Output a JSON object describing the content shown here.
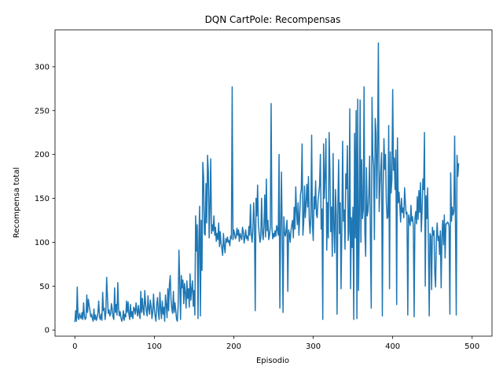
{
  "chart_data": {
    "type": "line",
    "title": "DQN CartPole: Recompensas",
    "xlabel": "Episodio",
    "ylabel": "Recompensa total",
    "xlim": [
      -25,
      525
    ],
    "ylim": [
      -7,
      342
    ],
    "xticks": [
      0,
      100,
      200,
      300,
      400,
      500
    ],
    "yticks": [
      0,
      50,
      100,
      150,
      200,
      250,
      300
    ],
    "grid": false,
    "series_color": "#1f77b4",
    "series": [
      {
        "values": [
          9,
          22,
          10,
          49,
          14,
          12,
          19,
          15,
          13,
          20,
          12,
          31,
          16,
          12,
          14,
          40,
          20,
          35,
          28,
          22,
          15,
          18,
          13,
          10,
          24,
          12,
          17,
          11,
          14,
          20,
          33,
          15,
          12,
          18,
          11,
          43,
          22,
          25,
          12,
          20,
          60,
          38,
          19,
          23,
          16,
          18,
          30,
          24,
          15,
          12,
          48,
          20,
          29,
          17,
          54,
          25,
          16,
          21,
          14,
          10,
          13,
          22,
          11,
          18,
          15,
          33,
          20,
          32,
          18,
          12,
          29,
          15,
          21,
          13,
          26,
          24,
          18,
          31,
          22,
          16,
          28,
          19,
          13,
          44,
          20,
          36,
          23,
          17,
          45,
          30,
          21,
          16,
          39,
          24,
          18,
          34,
          27,
          13,
          20,
          41,
          24,
          16,
          10,
          29,
          37,
          20,
          12,
          43,
          25,
          13,
          33,
          18,
          26,
          10,
          40,
          29,
          14,
          47,
          22,
          52,
          62,
          35,
          24,
          19,
          44,
          20,
          31,
          22,
          12,
          10,
          28,
          91,
          55,
          12,
          62,
          48,
          57,
          30,
          53,
          43,
          25,
          56,
          36,
          47,
          26,
          64,
          34,
          47,
          56,
          27,
          45,
          17,
          130,
          90,
          120,
          13,
          100,
          141,
          16,
          125,
          68,
          191,
          175,
          110,
          108,
          167,
          122,
          199,
          180,
          105,
          140,
          195,
          110,
          120,
          113,
          130,
          108,
          117,
          101,
          110,
          103,
          122,
          95,
          112,
          98,
          93,
          85,
          110,
          96,
          88,
          104,
          100,
          106,
          100,
          102,
          96,
          107,
          104,
          277,
          103,
          114,
          110,
          104,
          106,
          116,
          108,
          114,
          101,
          110,
          106,
          103,
          117,
          112,
          99,
          106,
          114,
          104,
          107,
          102,
          118,
          108,
          143,
          110,
          100,
          113,
          145,
          120,
          22,
          150,
          130,
          165,
          120,
          110,
          100,
          105,
          150,
          112,
          103,
          118,
          154,
          106,
          172,
          113,
          125,
          103,
          108,
          118,
          258,
          117,
          104,
          110,
          106,
          113,
          107,
          119,
          115,
          108,
          200,
          25,
          114,
          180,
          105,
          20,
          129,
          110,
          107,
          115,
          125,
          44,
          114,
          110,
          100,
          113,
          120,
          125,
          105,
          140,
          115,
          163,
          135,
          120,
          145,
          108,
          130,
          155,
          160,
          212,
          108,
          122,
          164,
          128,
          145,
          166,
          140,
          175,
          125,
          110,
          129,
          222,
          120,
          102,
          152,
          138,
          170,
          132,
          128,
          147,
          155,
          165,
          200,
          115,
          138,
          12,
          212,
          150,
          177,
          218,
          91,
          145,
          105,
          225,
          182,
          112,
          140,
          84,
          201,
          116,
          88,
          160,
          132,
          18,
          140,
          194,
          110,
          145,
          47,
          113,
          215,
          124,
          137,
          92,
          178,
          161,
          210,
          102,
          112,
          252,
          47,
          128,
          94,
          140,
          12,
          224,
          105,
          250,
          13,
          263,
          45,
          126,
          262,
          100,
          194,
          127,
          137,
          277,
          112,
          84,
          185,
          130,
          136,
          155,
          198,
          101,
          25,
          265,
          199,
          187,
          103,
          241,
          225,
          150,
          208,
          327,
          135,
          164,
          184,
          202,
          16,
          162,
          218,
          183,
          200,
          146,
          127,
          129,
          233,
          47,
          203,
          156,
          171,
          274,
          182,
          196,
          160,
          205,
          29,
          219,
          145,
          157,
          141,
          123,
          150,
          134,
          139,
          128,
          162,
          145,
          132,
          134,
          17,
          131,
          125,
          119,
          142,
          124,
          129,
          118,
          15,
          127,
          135,
          121,
          152,
          126,
          159,
          134,
          168,
          112,
          137,
          172,
          160,
          225,
          50,
          153,
          127,
          162,
          97,
          16,
          110,
          107,
          46,
          117,
          108,
          113,
          65,
          49,
          104,
          122,
          102,
          107,
          86,
          113,
          48,
          106,
          125,
          97,
          131,
          82,
          121,
          121,
          123,
          122,
          118,
          18,
          179,
          124,
          140,
          131,
          135,
          221,
          123,
          17,
          199,
          175,
          190
        ]
      }
    ]
  }
}
